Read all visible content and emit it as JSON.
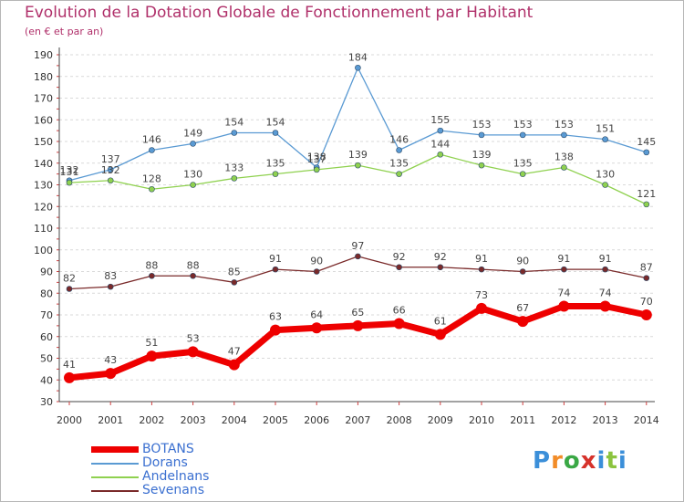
{
  "title": "Evolution de la Dotation Globale de Fonctionnement par Habitant",
  "subtitle": "(en € et par an)",
  "brand": {
    "text": "Proxiti",
    "colors": [
      "#3b8fd9",
      "#f28c28",
      "#3aa845",
      "#d6322b",
      "#3b8fd9",
      "#8cc43f",
      "#3b8fd9"
    ]
  },
  "chart_data": {
    "type": "line",
    "title": "Evolution de la Dotation Globale de Fonctionnement par Habitant",
    "subtitle": "(en € et par an)",
    "x": [
      "2000",
      "2001",
      "2002",
      "2003",
      "2004",
      "2005",
      "2006",
      "2007",
      "2008",
      "2009",
      "2010",
      "2011",
      "2012",
      "2013",
      "2014"
    ],
    "yticks": [
      30,
      40,
      50,
      60,
      70,
      80,
      90,
      100,
      110,
      120,
      130,
      140,
      150,
      160,
      170,
      180,
      190
    ],
    "ylim": [
      30,
      190
    ],
    "grid": "horizontal dashed",
    "legend_position": "bottom-left",
    "series": [
      {
        "name": "BOTANS",
        "color": "#ee0000",
        "values": [
          41,
          43,
          51,
          53,
          47,
          63,
          64,
          65,
          66,
          61,
          73,
          67,
          74,
          74,
          70
        ]
      },
      {
        "name": "Dorans",
        "color": "#5a9ad3",
        "values": [
          132,
          137,
          146,
          149,
          154,
          154,
          138,
          184,
          146,
          155,
          153,
          153,
          153,
          151,
          145
        ]
      },
      {
        "name": "Andelnans",
        "color": "#8fd14f",
        "values": [
          131,
          132,
          128,
          130,
          133,
          135,
          137,
          139,
          135,
          144,
          139,
          135,
          138,
          130,
          121
        ]
      },
      {
        "name": "Sevenans",
        "color": "#7a2a2a",
        "values": [
          82,
          83,
          88,
          88,
          85,
          91,
          90,
          97,
          92,
          92,
          91,
          90,
          91,
          91,
          87
        ]
      }
    ]
  }
}
